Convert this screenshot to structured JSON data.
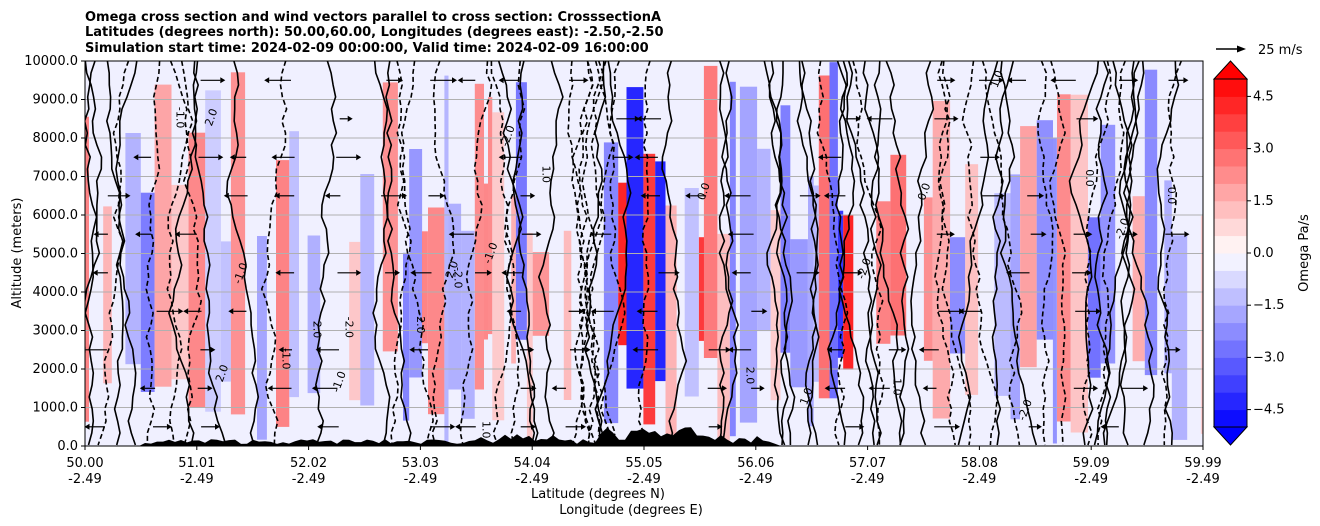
{
  "chart_data": {
    "type": "heatmap",
    "title_lines": [
      "Omega cross section and wind vectors parallel to cross section: CrosssectionA",
      "Latitudes (degrees north): 50.00,60.00, Longitudes (degrees east): -2.50,-2.50",
      "Simulation start time: 2024-02-09 00:00:00, Valid time: 2024-02-09 16:00:00"
    ],
    "ylabel": "Altitude (meters)",
    "xlabel_lat": "Latitude (degrees N)",
    "xlabel_lon": "Longitude (degrees E)",
    "y_ticks": [
      {
        "value": 0,
        "label": "0.0"
      },
      {
        "value": 1000,
        "label": "1000.0"
      },
      {
        "value": 2000,
        "label": "2000.0"
      },
      {
        "value": 3000,
        "label": "3000.0"
      },
      {
        "value": 4000,
        "label": "4000.0"
      },
      {
        "value": 5000,
        "label": "5000.0"
      },
      {
        "value": 6000,
        "label": "6000.0"
      },
      {
        "value": 7000,
        "label": "7000.0"
      },
      {
        "value": 8000,
        "label": "8000.0"
      },
      {
        "value": 9000,
        "label": "9000.0"
      },
      {
        "value": 10000,
        "label": "10000.0"
      }
    ],
    "ylim": [
      0,
      10000
    ],
    "x_ticks": [
      {
        "lat": "50.00",
        "lon": "-2.49"
      },
      {
        "lat": "51.01",
        "lon": "-2.49"
      },
      {
        "lat": "52.02",
        "lon": "-2.49"
      },
      {
        "lat": "53.03",
        "lon": "-2.49"
      },
      {
        "lat": "54.04",
        "lon": "-2.49"
      },
      {
        "lat": "55.05",
        "lon": "-2.49"
      },
      {
        "lat": "56.06",
        "lon": "-2.49"
      },
      {
        "lat": "57.07",
        "lon": "-2.49"
      },
      {
        "lat": "58.08",
        "lon": "-2.49"
      },
      {
        "lat": "59.09",
        "lon": "-2.49"
      },
      {
        "lat": "59.99",
        "lon": "-2.49"
      }
    ],
    "xlim": [
      50.0,
      59.99
    ],
    "colorbar": {
      "label": "Omega Pa/s",
      "range": [
        -5.0,
        5.0
      ],
      "ticks": [
        {
          "value": 4.5,
          "label": "4.5"
        },
        {
          "value": 3.0,
          "label": "3.0"
        },
        {
          "value": 1.5,
          "label": "1.5"
        },
        {
          "value": 0.0,
          "label": "0.0"
        },
        {
          "value": -1.5,
          "label": "−1.5"
        },
        {
          "value": -3.0,
          "label": "−3.0"
        },
        {
          "value": -4.5,
          "label": "−4.5"
        }
      ],
      "colormap": "bwr",
      "extend": "both"
    },
    "quiver_key": {
      "label": "25 m/s"
    },
    "contour_labels": [
      "0.0",
      "-1.0",
      "1.0",
      "-2.0",
      "2.0"
    ],
    "grid": "horizontal"
  }
}
